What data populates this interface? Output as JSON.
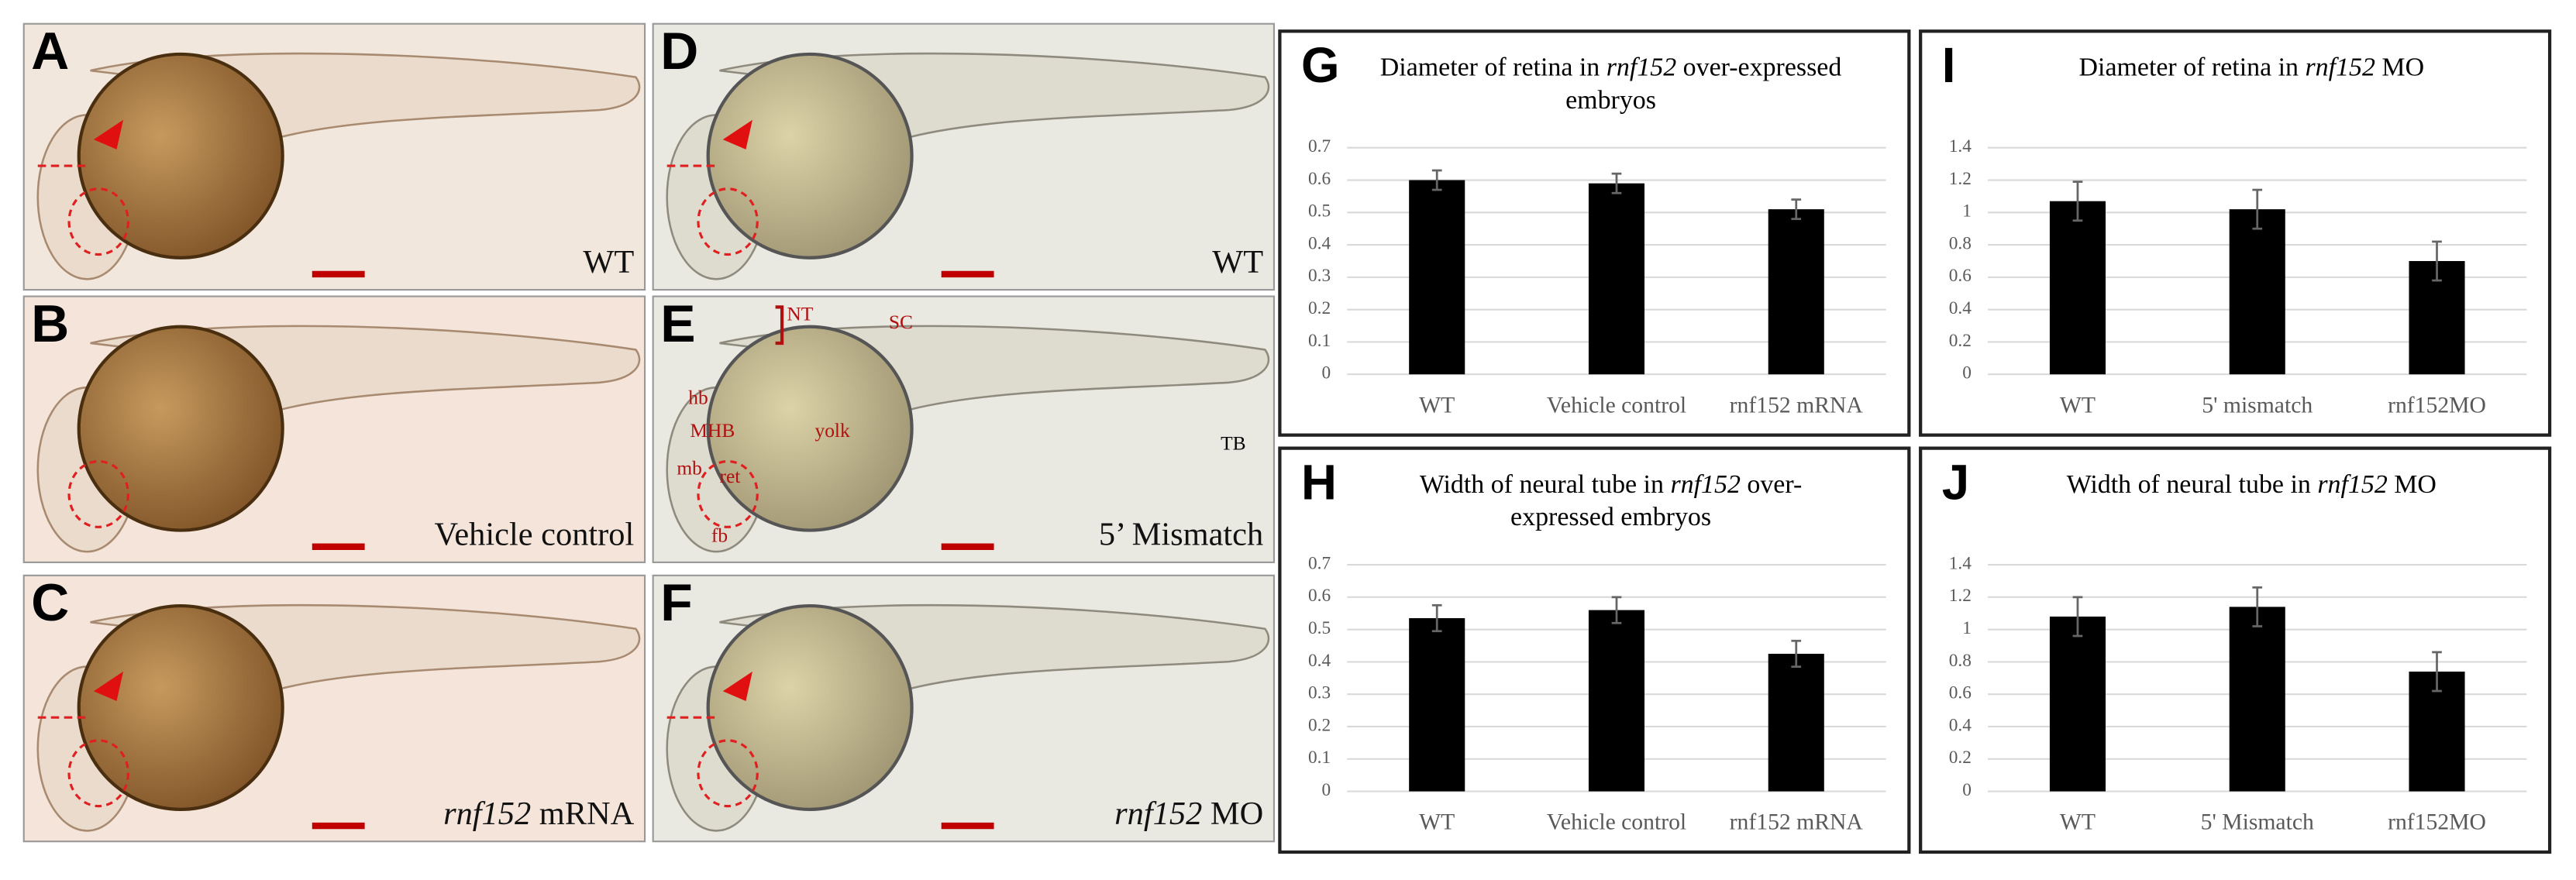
{
  "panels": [
    {
      "label": "A",
      "caption": "WT"
    },
    {
      "label": "B",
      "caption": "Vehicle control"
    },
    {
      "label": "C",
      "caption_italic": "rnf152",
      "caption": " mRNA"
    },
    {
      "label": "D",
      "caption": "WT"
    },
    {
      "label": "E",
      "caption": "5’ Mismatch",
      "annotations": [
        "NT",
        "SC",
        "hb",
        "MHB",
        "yolk",
        "mb",
        "ret",
        "fb",
        "TB"
      ]
    },
    {
      "label": "F",
      "caption_italic": "rnf152",
      "caption": " MO"
    }
  ],
  "chart_data": [
    {
      "type": "bar",
      "label": "G",
      "title": [
        "Diameter of retina in ",
        "rnf152",
        " over-expressed embryos"
      ],
      "categories": [
        "WT",
        "Vehicle control",
        "rnf152 mRNA"
      ],
      "values": [
        0.6,
        0.59,
        0.51
      ],
      "errors": [
        0.03,
        0.03,
        0.03
      ],
      "color": "#000000",
      "ylim": [
        0,
        0.7
      ],
      "yticks": [
        0,
        0.1,
        0.2,
        0.3,
        0.4,
        0.5,
        0.6,
        0.7
      ],
      "grid": true
    },
    {
      "type": "bar",
      "label": "H",
      "title": [
        "Width of neural tube in ",
        "rnf152",
        " over-expressed embryos"
      ],
      "categories": [
        "WT",
        "Vehicle control",
        "rnf152 mRNA"
      ],
      "values": [
        0.535,
        0.56,
        0.425
      ],
      "errors": [
        0.04,
        0.04,
        0.04
      ],
      "color": "#000000",
      "ylim": [
        0,
        0.7
      ],
      "yticks": [
        0,
        0.1,
        0.2,
        0.3,
        0.4,
        0.5,
        0.6,
        0.7
      ],
      "grid": true
    },
    {
      "type": "bar",
      "label": "I",
      "title": [
        "Diameter of retina in ",
        "rnf152",
        " MO"
      ],
      "categories": [
        "WT",
        "5' mismatch",
        "rnf152MO"
      ],
      "values": [
        1.07,
        1.02,
        0.7
      ],
      "errors": [
        0.12,
        0.12,
        0.12
      ],
      "color": "#000000",
      "ylim": [
        0,
        1.4
      ],
      "yticks": [
        0,
        0.2,
        0.4,
        0.6,
        0.8,
        1,
        1.2,
        1.4
      ],
      "grid": true
    },
    {
      "type": "bar",
      "label": "J",
      "title": [
        "Width of neural tube in ",
        "rnf152",
        " MO"
      ],
      "categories": [
        "WT",
        "5' Mismatch",
        "rnf152MO"
      ],
      "values": [
        1.08,
        1.14,
        0.74
      ],
      "errors": [
        0.12,
        0.12,
        0.12
      ],
      "color": "#000000",
      "ylim": [
        0,
        1.4
      ],
      "yticks": [
        0,
        0.2,
        0.4,
        0.6,
        0.8,
        1,
        1.2,
        1.4
      ],
      "grid": true
    }
  ]
}
